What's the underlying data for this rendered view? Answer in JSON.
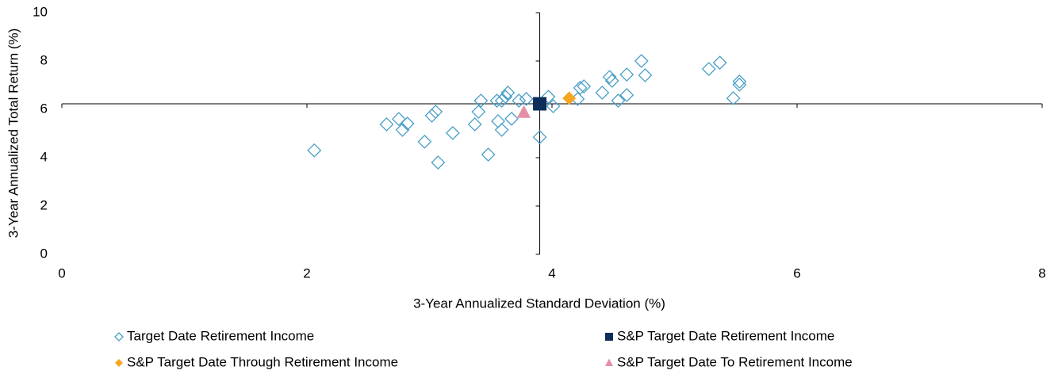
{
  "chart_data": {
    "type": "scatter",
    "xlabel": "3-Year Annualized Standard Deviation (%)",
    "ylabel": "3-Year Annualized Total Return (%)",
    "xlim": [
      0,
      8
    ],
    "xticks": [
      0,
      2,
      4,
      6,
      8
    ],
    "ylim": [
      0,
      10
    ],
    "yticks": [
      0,
      2,
      4,
      6,
      8,
      10
    ],
    "series": [
      {
        "name": "Target Date Retirement Income",
        "marker": "diamond-open",
        "color": "#4a9fc7",
        "x": [
          2.06,
          2.65,
          2.75,
          2.78,
          2.82,
          2.96,
          3.02,
          3.05,
          3.07,
          3.19,
          3.37,
          3.4,
          3.42,
          3.48,
          3.55,
          3.56,
          3.59,
          3.59,
          3.62,
          3.64,
          3.67,
          3.73,
          3.79,
          3.9,
          3.97,
          4.01,
          4.21,
          4.23,
          4.26,
          4.41,
          4.47,
          4.49,
          4.54,
          4.61,
          4.61,
          4.73,
          4.76,
          5.28,
          5.37,
          5.48,
          5.53,
          5.53
        ],
        "values": [
          4.3,
          5.38,
          5.6,
          5.15,
          5.41,
          4.66,
          5.74,
          5.9,
          3.8,
          5.02,
          5.38,
          5.9,
          6.36,
          4.13,
          6.36,
          5.51,
          5.15,
          6.36,
          6.52,
          6.69,
          5.61,
          6.36,
          6.43,
          4.85,
          6.52,
          6.13,
          6.43,
          6.89,
          6.95,
          6.69,
          7.34,
          7.18,
          6.36,
          7.44,
          6.59,
          8.0,
          7.41,
          7.67,
          7.93,
          6.46,
          7.15,
          7.02
        ]
      },
      {
        "name": "S&P Target Date Retirement Income",
        "marker": "square",
        "color": "#0e2d59",
        "x": [
          3.9
        ],
        "values": [
          6.23
        ]
      },
      {
        "name": "S&P Target Date Through Retirement Income",
        "marker": "diamond",
        "color": "#f5a623",
        "x": [
          4.14
        ],
        "values": [
          6.46
        ]
      },
      {
        "name": "S&P Target Date To Retirement Income",
        "marker": "triangle",
        "color": "#e58fa6",
        "x": [
          3.77
        ],
        "values": [
          5.87
        ]
      }
    ]
  }
}
